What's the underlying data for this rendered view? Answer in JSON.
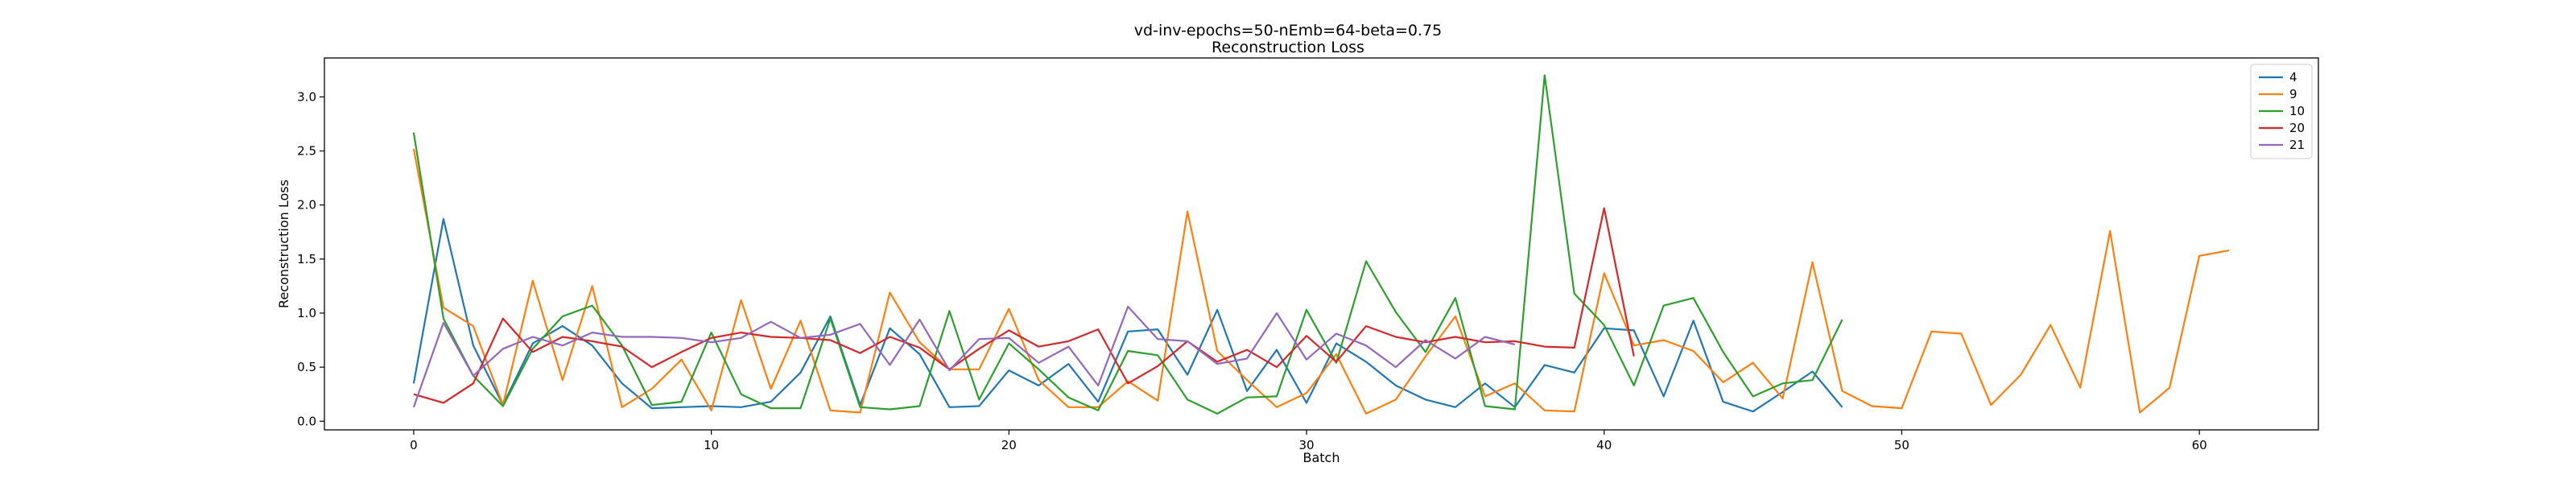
{
  "chart_data": {
    "type": "line",
    "title": "vd-inv-epochs=50-nEmb=64-beta=0.75",
    "subtitle": "Reconstruction Loss",
    "xlabel": "Batch",
    "ylabel": "Reconstruction Loss",
    "xlim": [
      -3,
      64
    ],
    "ylim": [
      -0.08,
      3.36
    ],
    "xticks": [
      0,
      10,
      20,
      30,
      40,
      50,
      60
    ],
    "yticks": [
      0.0,
      0.5,
      1.0,
      1.5,
      2.0,
      2.5,
      3.0
    ],
    "legend_position": "top-right",
    "series": [
      {
        "name": "4",
        "color": "#1f77b4",
        "values": [
          0.35,
          1.87,
          0.7,
          0.15,
          0.72,
          0.88,
          0.7,
          0.35,
          0.12,
          0.13,
          0.14,
          0.13,
          0.18,
          0.45,
          0.97,
          0.15,
          0.86,
          0.62,
          0.13,
          0.14,
          0.47,
          0.33,
          0.53,
          0.18,
          0.83,
          0.85,
          0.43,
          1.03,
          0.28,
          0.66,
          0.17,
          0.72,
          0.55,
          0.33,
          0.2,
          0.13,
          0.35,
          0.13,
          0.52,
          0.45,
          0.86,
          0.84,
          0.23,
          0.93,
          0.18,
          0.09,
          0.27,
          0.46,
          0.13
        ]
      },
      {
        "name": "9",
        "color": "#ff7f0e",
        "values": [
          2.52,
          1.05,
          0.88,
          0.15,
          1.3,
          0.38,
          1.25,
          0.13,
          0.3,
          0.57,
          0.1,
          1.12,
          0.3,
          0.93,
          0.1,
          0.08,
          1.19,
          0.73,
          0.48,
          0.48,
          1.04,
          0.38,
          0.13,
          0.13,
          0.37,
          0.19,
          1.94,
          0.65,
          0.38,
          0.13,
          0.26,
          0.62,
          0.07,
          0.2,
          0.6,
          0.97,
          0.23,
          0.35,
          0.1,
          0.09,
          1.37,
          0.7,
          0.75,
          0.65,
          0.36,
          0.54,
          0.21,
          1.47,
          0.28,
          0.14,
          0.12,
          0.83,
          0.81,
          0.15,
          0.43,
          0.89,
          0.31,
          1.76,
          0.08,
          0.31,
          1.53,
          1.58
        ]
      },
      {
        "name": "10",
        "color": "#2ca02c",
        "values": [
          2.67,
          0.95,
          0.42,
          0.14,
          0.67,
          0.97,
          1.07,
          0.7,
          0.15,
          0.18,
          0.82,
          0.25,
          0.12,
          0.12,
          0.95,
          0.13,
          0.11,
          0.14,
          1.02,
          0.2,
          0.72,
          0.48,
          0.22,
          0.1,
          0.65,
          0.61,
          0.2,
          0.07,
          0.22,
          0.23,
          1.03,
          0.54,
          1.48,
          1.01,
          0.64,
          1.14,
          0.14,
          0.11,
          3.2,
          1.18,
          0.89,
          0.33,
          1.07,
          1.14,
          0.64,
          0.23,
          0.35,
          0.38,
          0.94
        ]
      },
      {
        "name": "20",
        "color": "#d62728",
        "values": [
          0.25,
          0.17,
          0.35,
          0.95,
          0.64,
          0.78,
          0.74,
          0.69,
          0.5,
          0.64,
          0.77,
          0.82,
          0.78,
          0.77,
          0.75,
          0.63,
          0.78,
          0.68,
          0.48,
          0.67,
          0.84,
          0.69,
          0.74,
          0.85,
          0.35,
          0.51,
          0.74,
          0.55,
          0.66,
          0.5,
          0.79,
          0.55,
          0.88,
          0.78,
          0.73,
          0.78,
          0.73,
          0.74,
          0.69,
          0.68,
          1.97,
          0.6
        ]
      },
      {
        "name": "21",
        "color": "#9467bd",
        "values": [
          0.13,
          0.91,
          0.42,
          0.67,
          0.78,
          0.7,
          0.82,
          0.78,
          0.78,
          0.77,
          0.73,
          0.77,
          0.92,
          0.77,
          0.8,
          0.9,
          0.52,
          0.94,
          0.47,
          0.76,
          0.77,
          0.54,
          0.69,
          0.33,
          1.06,
          0.76,
          0.74,
          0.53,
          0.58,
          1.0,
          0.57,
          0.81,
          0.7,
          0.5,
          0.75,
          0.58,
          0.78,
          0.71
        ]
      }
    ]
  }
}
